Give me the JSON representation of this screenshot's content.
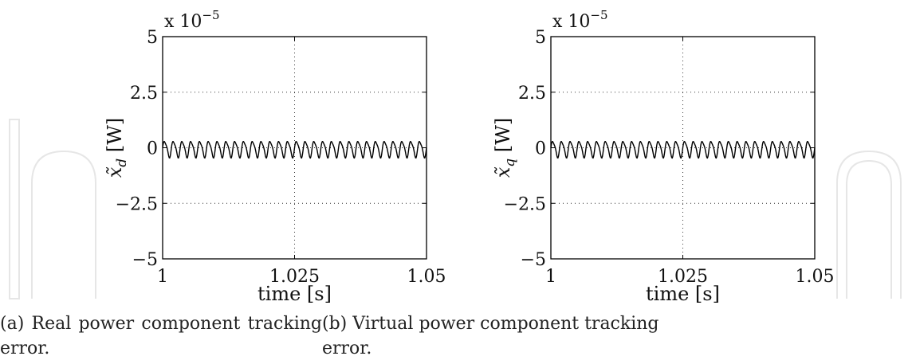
{
  "watermark": {
    "text": "In",
    "color": "#e3e3e3"
  },
  "chart_data": [
    {
      "type": "line",
      "exponent_label": "x 10",
      "exponent_power": "−5",
      "xlabel": "time [s]",
      "ylabel_symbol": "x̃",
      "ylabel_sub": "d",
      "ylabel_unit": "[W]",
      "xlim": [
        1,
        1.05
      ],
      "ylim": [
        -5,
        5
      ],
      "x_ticks": [
        "1",
        "1.025",
        "1.05"
      ],
      "y_ticks": [
        "5",
        "2.5",
        "0",
        "−2.5",
        "−5"
      ],
      "grid": true,
      "series": [
        {
          "oscillation_cycles": 30,
          "amplitude": 0.35,
          "harmonic_amplitude": 0.08,
          "offset": -0.05
        }
      ]
    },
    {
      "type": "line",
      "exponent_label": "x 10",
      "exponent_power": "−5",
      "xlabel": "time [s]",
      "ylabel_symbol": "x̃",
      "ylabel_sub": "q",
      "ylabel_unit": "[W]",
      "xlim": [
        1,
        1.05
      ],
      "ylim": [
        -5,
        5
      ],
      "x_ticks": [
        "1",
        "1.025",
        "1.05"
      ],
      "y_ticks": [
        "5",
        "2.5",
        "0",
        "−2.5",
        "−5"
      ],
      "grid": true,
      "series": [
        {
          "oscillation_cycles": 30,
          "amplitude": 0.35,
          "harmonic_amplitude": 0.08,
          "offset": -0.05
        }
      ]
    }
  ],
  "captions": {
    "a_line1": "(a) Real power component tracking",
    "a_line2": "error.",
    "b_line1": "(b) Virtual power component tracking",
    "b_line2": "error."
  }
}
